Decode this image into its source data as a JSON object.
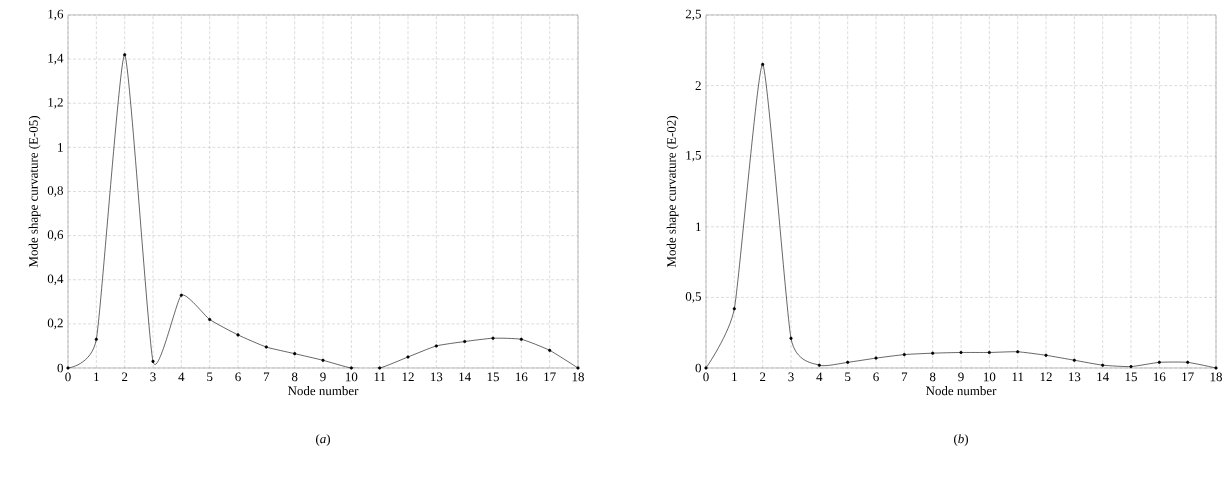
{
  "chart_data": [
    {
      "type": "line",
      "xlabel": "Node number",
      "ylabel": "Mode shape curvature (E-05)",
      "annotations": [
        "(*a*)"
      ],
      "x": [
        0,
        1,
        2,
        3,
        4,
        5,
        6,
        7,
        8,
        9,
        10,
        11,
        12,
        13,
        14,
        15,
        16,
        17,
        18
      ],
      "series": [
        {
          "color": "#000000",
          "values": [
            0,
            0.13,
            1.42,
            0.03,
            0.33,
            0.22,
            0.15,
            0.095,
            0.065,
            0.035,
            0,
            0,
            0.05,
            0.1,
            0.12,
            0.135,
            0.13,
            0.08,
            0
          ]
        }
      ],
      "xlim": [
        0,
        18
      ],
      "xticks": [
        0,
        1,
        2,
        3,
        4,
        5,
        6,
        7,
        8,
        9,
        10,
        11,
        12,
        13,
        14,
        15,
        16,
        17,
        18
      ],
      "ylim": [
        0,
        1.6
      ],
      "yticks": [
        0,
        {
          "value": 0.2,
          "label": "0,2"
        },
        {
          "value": 0.4,
          "label": "0,4"
        },
        {
          "value": 0.6,
          "label": "0,6"
        },
        {
          "value": 0.8,
          "label": "0,8"
        },
        1,
        {
          "value": 1.2,
          "label": "1,2"
        },
        {
          "value": 1.4,
          "label": "1,4"
        },
        {
          "value": 1.6,
          "label": "1,6"
        }
      ],
      "grid": true,
      "marker": "circle",
      "line_style": "solid"
    },
    {
      "type": "line",
      "xlabel": "Node number",
      "ylabel": "Mode shape curvature (E-02)",
      "annotations": [
        "(*b*)"
      ],
      "x": [
        0,
        1,
        2,
        3,
        4,
        5,
        6,
        7,
        8,
        9,
        10,
        11,
        12,
        13,
        14,
        15,
        16,
        17,
        18
      ],
      "series": [
        {
          "color": "#000000",
          "values": [
            0,
            0.42,
            2.15,
            0.21,
            0.02,
            0.04,
            0.07,
            0.095,
            0.105,
            0.11,
            0.11,
            0.115,
            0.09,
            0.055,
            0.02,
            0.01,
            0.04,
            0.04,
            0
          ]
        }
      ],
      "xlim": [
        0,
        18
      ],
      "xticks": [
        0,
        1,
        2,
        3,
        4,
        5,
        6,
        7,
        8,
        9,
        10,
        11,
        12,
        13,
        14,
        15,
        16,
        17,
        18
      ],
      "ylim": [
        0,
        2.5
      ],
      "yticks": [
        0,
        {
          "value": 0.5,
          "label": "0,5"
        },
        1,
        {
          "value": 1.5,
          "label": "1,5"
        },
        2,
        {
          "value": 2.5,
          "label": "2,5"
        }
      ],
      "grid": true,
      "marker": "circle",
      "line_style": "solid"
    }
  ]
}
